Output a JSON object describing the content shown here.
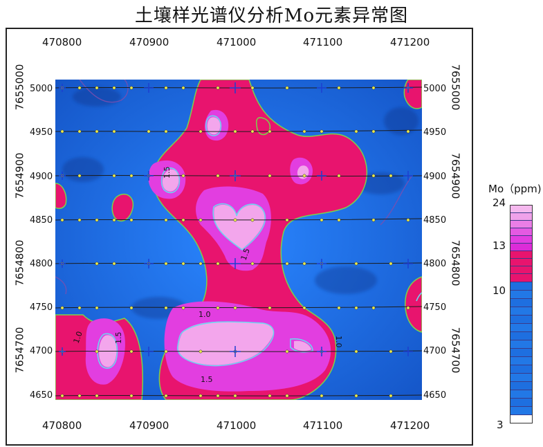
{
  "title": "土壤样光谱仪分析Mo元素异常图",
  "x_ticks": [
    "470800",
    "470900",
    "471000",
    "471100",
    "471200"
  ],
  "y_ticks_outer_left": [
    "7655000",
    "7654900",
    "7654800",
    "7654700"
  ],
  "y_ticks_outer_right": [
    "7655000",
    "7654900",
    "7654800",
    "7654700"
  ],
  "row_labels": [
    "5000",
    "4950",
    "4900",
    "4850",
    "4800",
    "4750",
    "4700",
    "4650"
  ],
  "contour_labels": [
    "1.5",
    "1.5",
    "1.5",
    "1.5",
    "1.0",
    "1.0",
    "1.0"
  ],
  "legend": {
    "title": "Mo（ppm)",
    "labels": [
      "24",
      "13",
      "10",
      "3"
    ]
  },
  "colors": {
    "low": "#1e6fe0",
    "mid": "#e8146e",
    "high": "#e23ee0",
    "peak": "#f3a6ec"
  }
}
